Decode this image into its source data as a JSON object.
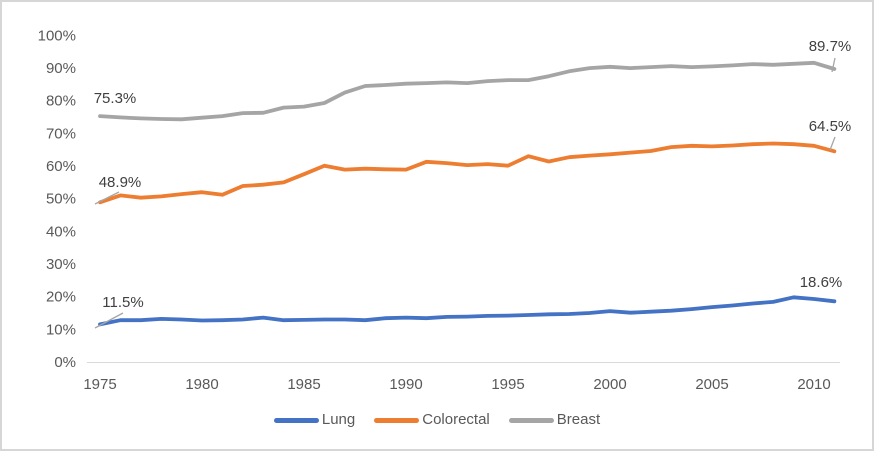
{
  "chart_data": {
    "type": "line",
    "title": "",
    "xlabel": "",
    "ylabel": "",
    "grid": false,
    "legend_position": "bottom",
    "ylim": [
      0,
      100
    ],
    "y_tick_labels": [
      "0%",
      "10%",
      "20%",
      "30%",
      "40%",
      "50%",
      "60%",
      "70%",
      "80%",
      "90%",
      "100%"
    ],
    "x_tick_labels": [
      "1975",
      "1980",
      "1985",
      "1990",
      "1995",
      "2000",
      "2005",
      "2010"
    ],
    "x": [
      1975,
      1976,
      1977,
      1978,
      1979,
      1980,
      1981,
      1982,
      1983,
      1984,
      1985,
      1986,
      1987,
      1988,
      1989,
      1990,
      1991,
      1992,
      1993,
      1994,
      1995,
      1996,
      1997,
      1998,
      1999,
      2000,
      2001,
      2002,
      2003,
      2004,
      2005,
      2006,
      2007,
      2008,
      2009,
      2010,
      2011
    ],
    "series": [
      {
        "name": "Lung",
        "color": "#4472C4",
        "values": [
          11.5,
          12.8,
          12.8,
          13.2,
          13.0,
          12.7,
          12.8,
          13.0,
          13.6,
          12.8,
          12.9,
          13.0,
          13.0,
          12.8,
          13.4,
          13.6,
          13.4,
          13.8,
          13.9,
          14.1,
          14.2,
          14.4,
          14.6,
          14.7,
          15.0,
          15.6,
          15.1,
          15.4,
          15.7,
          16.2,
          16.8,
          17.3,
          17.9,
          18.4,
          19.8,
          19.3,
          18.6
        ]
      },
      {
        "name": "Colorectal",
        "color": "#ED7D31",
        "values": [
          48.9,
          51.0,
          50.3,
          50.7,
          51.4,
          52.0,
          51.2,
          53.9,
          54.3,
          55.0,
          57.5,
          60.1,
          58.9,
          59.2,
          59.0,
          58.9,
          61.3,
          60.9,
          60.3,
          60.6,
          60.1,
          63.0,
          61.4,
          62.7,
          63.2,
          63.6,
          64.1,
          64.6,
          65.8,
          66.2,
          66.0,
          66.3,
          66.7,
          66.9,
          66.7,
          66.2,
          64.5
        ]
      },
      {
        "name": "Breast",
        "color": "#A5A5A5",
        "values": [
          75.3,
          74.9,
          74.6,
          74.4,
          74.3,
          74.8,
          75.3,
          76.2,
          76.3,
          77.9,
          78.2,
          79.3,
          82.5,
          84.5,
          84.8,
          85.2,
          85.4,
          85.6,
          85.4,
          86.0,
          86.3,
          86.3,
          87.5,
          89.0,
          90.0,
          90.4,
          90.0,
          90.3,
          90.6,
          90.3,
          90.5,
          90.8,
          91.2,
          91.0,
          91.3,
          91.6,
          89.7
        ]
      }
    ],
    "annotations": [
      {
        "text": "75.3%",
        "series": "Breast",
        "position": "start"
      },
      {
        "text": "48.9%",
        "series": "Colorectal",
        "position": "start"
      },
      {
        "text": "11.5%",
        "series": "Lung",
        "position": "start"
      },
      {
        "text": "89.7%",
        "series": "Breast",
        "position": "end"
      },
      {
        "text": "64.5%",
        "series": "Colorectal",
        "position": "end"
      },
      {
        "text": "18.6%",
        "series": "Lung",
        "position": "end"
      }
    ]
  },
  "colors": {
    "axis_line": "#D9D9D9",
    "leader_line": "#A6A6A6",
    "tick_text": "#595959",
    "data_label_text": "#404040",
    "frame_border": "#D6D6D6",
    "background": "#FFFFFF"
  }
}
